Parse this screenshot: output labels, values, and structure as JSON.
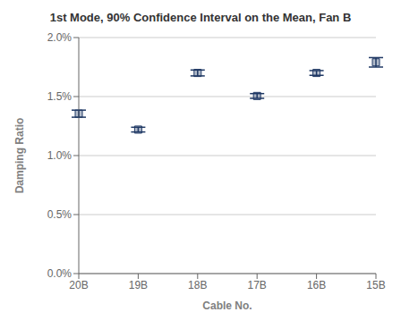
{
  "chart_data": {
    "type": "scatter",
    "title": "1st Mode, 90% Confidence Interval on the Mean, Fan B",
    "xlabel": "Cable No.",
    "ylabel": "Damping Ratio",
    "categories": [
      "20B",
      "19B",
      "18B",
      "17B",
      "16B",
      "15B"
    ],
    "values": [
      0.01355,
      0.0122,
      0.017,
      0.01505,
      0.017,
      0.0179
    ],
    "errors": [
      0.0003,
      0.0002,
      0.00025,
      0.0002,
      0.0002,
      0.0004
    ],
    "color": "#1F3864",
    "marker": "square",
    "ylim": [
      0.0,
      0.02
    ],
    "yticks": [
      {
        "value": 0.0,
        "label": "0.0%"
      },
      {
        "value": 0.005,
        "label": "0.5%"
      },
      {
        "value": 0.01,
        "label": "1.0%"
      },
      {
        "value": 0.015,
        "label": "1.5%"
      },
      {
        "value": 0.02,
        "label": "2.0%"
      }
    ],
    "grid": true
  }
}
